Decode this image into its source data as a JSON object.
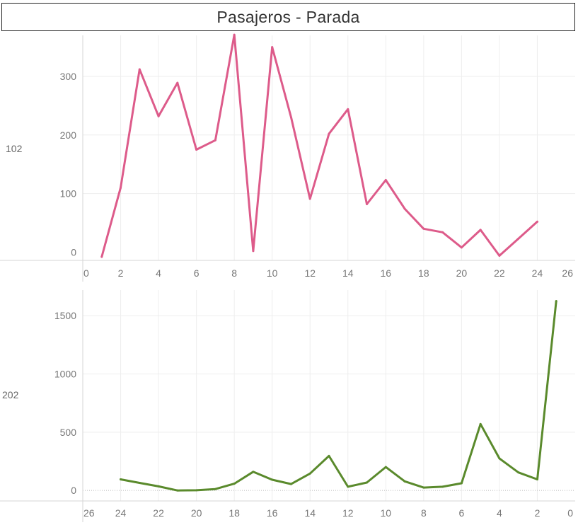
{
  "title": "Pasajeros - Parada",
  "colors": {
    "series_1": "#dd5b8a",
    "series_2": "#5a8a2c",
    "grid": "#eeeeee",
    "axis": "#d6d6d6"
  },
  "chart_data": [
    {
      "type": "line",
      "row_label": "102",
      "x_reversed": false,
      "xlim": [
        0,
        26
      ],
      "ylim": [
        -14,
        370
      ],
      "x_ticks": [
        0,
        2,
        4,
        6,
        8,
        10,
        12,
        14,
        16,
        18,
        20,
        22,
        24,
        26
      ],
      "y_ticks": [
        0,
        100,
        200,
        300
      ],
      "grid": true,
      "x": [
        1,
        2,
        3,
        4,
        5,
        6,
        7,
        8,
        9,
        10,
        11,
        12,
        13,
        14,
        15,
        16,
        17,
        18,
        19,
        20,
        21,
        22,
        23,
        24
      ],
      "series": [
        {
          "values": [
            -8,
            110,
            312,
            232,
            289,
            175,
            191,
            371,
            2,
            350,
            230,
            91,
            202,
            244,
            82,
            123,
            74,
            40,
            34,
            8,
            38,
            -6,
            23,
            52
          ]
        }
      ]
    },
    {
      "type": "line",
      "row_label": "202",
      "x_reversed": true,
      "xlim": [
        0,
        26
      ],
      "ylim": [
        -90,
        1720
      ],
      "x_ticks": [
        0,
        2,
        4,
        6,
        8,
        10,
        12,
        14,
        16,
        18,
        20,
        22,
        24,
        26
      ],
      "y_ticks": [
        0,
        500,
        1000,
        1500
      ],
      "grid": true,
      "x": [
        24,
        23,
        22,
        21,
        20,
        19,
        18,
        17,
        16,
        15,
        14,
        13,
        12,
        11,
        10,
        9,
        8,
        7,
        6,
        5,
        4,
        3,
        2,
        1
      ],
      "series": [
        {
          "values": [
            95,
            65,
            35,
            0,
            2,
            12,
            58,
            160,
            92,
            55,
            145,
            296,
            32,
            68,
            201,
            78,
            25,
            32,
            62,
            570,
            275,
            155,
            95,
            1625
          ]
        }
      ]
    }
  ]
}
